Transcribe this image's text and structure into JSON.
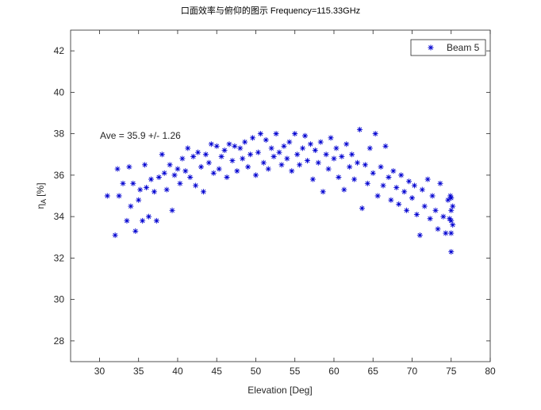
{
  "chart_data": {
    "type": "scatter",
    "title": "口面效率与俯仰的图示 Frequency=115.33GHz",
    "x_label": "Elevation [Deg]",
    "y_label": {
      "symbol": "η",
      "subscript": "A",
      "unit": "[%]"
    },
    "annotation": "Ave = 35.9 +/- 1.26",
    "legend": "top-right",
    "xlim": [
      26.3,
      80
    ],
    "ylim": [
      27,
      43
    ],
    "xticks": [
      30,
      35,
      40,
      45,
      50,
      55,
      60,
      65,
      70,
      75,
      80
    ],
    "yticks": [
      28,
      30,
      32,
      34,
      36,
      38,
      40,
      42
    ],
    "series": [
      {
        "name": "Beam 5",
        "color": "#0000d0",
        "marker": "*",
        "x": [
          31,
          32,
          32.3,
          32.5,
          33,
          33.5,
          33.8,
          34,
          34.3,
          34.6,
          35,
          35.2,
          35.5,
          35.8,
          36,
          36.3,
          36.6,
          37,
          37.3,
          37.6,
          38,
          38.3,
          38.6,
          39,
          39.3,
          39.6,
          40,
          40.3,
          40.6,
          41,
          41.3,
          41.6,
          42,
          42.3,
          42.6,
          43,
          43.3,
          43.6,
          44,
          44.3,
          44.6,
          45,
          45.3,
          45.6,
          46,
          46.3,
          46.6,
          47,
          47.3,
          47.6,
          48,
          48.3,
          48.6,
          49,
          49.3,
          49.6,
          50,
          50.3,
          50.6,
          51,
          51.3,
          51.6,
          52,
          52.3,
          52.6,
          53,
          53.3,
          53.6,
          54,
          54.3,
          54.6,
          55,
          55.3,
          55.6,
          56,
          56.3,
          56.6,
          57,
          57.3,
          57.6,
          58,
          58.3,
          58.6,
          59,
          59.3,
          59.6,
          60,
          60.3,
          60.6,
          61,
          61.3,
          61.6,
          62,
          62.3,
          62.6,
          63,
          63.3,
          63.6,
          64,
          64.3,
          64.6,
          65,
          65.3,
          65.6,
          66,
          66.3,
          66.6,
          67,
          67.3,
          67.6,
          68,
          68.3,
          68.6,
          69,
          69.3,
          69.6,
          70,
          70.3,
          70.6,
          71,
          71.3,
          71.6,
          72,
          72.3,
          72.6,
          73,
          73.3,
          73.6,
          74,
          74.3,
          74.6,
          75,
          75,
          75,
          75,
          75,
          75.2,
          75.2,
          74.8,
          74.9
        ],
        "values": [
          35.0,
          33.1,
          36.3,
          35.0,
          35.6,
          33.8,
          36.4,
          34.5,
          35.6,
          33.3,
          34.8,
          35.3,
          33.8,
          36.5,
          35.4,
          34.0,
          35.8,
          35.2,
          33.8,
          35.9,
          37.0,
          36.1,
          35.3,
          36.5,
          34.3,
          36.0,
          36.3,
          35.6,
          36.8,
          36.2,
          37.3,
          35.9,
          36.9,
          35.5,
          37.1,
          36.4,
          35.2,
          37.0,
          36.6,
          37.5,
          36.1,
          37.4,
          36.3,
          36.9,
          37.2,
          35.9,
          37.5,
          36.7,
          37.4,
          36.2,
          37.3,
          36.8,
          37.6,
          36.4,
          37.0,
          37.8,
          36.0,
          37.1,
          38.0,
          36.6,
          37.7,
          36.3,
          37.3,
          36.9,
          38.0,
          37.1,
          36.5,
          37.4,
          36.8,
          37.6,
          36.2,
          38.0,
          37.0,
          36.5,
          37.3,
          37.9,
          36.7,
          37.5,
          35.8,
          37.2,
          36.6,
          37.6,
          35.2,
          37.0,
          36.3,
          37.8,
          36.8,
          37.3,
          35.9,
          36.9,
          35.3,
          37.5,
          36.4,
          37.0,
          35.8,
          36.6,
          38.2,
          34.4,
          36.5,
          35.6,
          37.3,
          36.1,
          38.0,
          35.0,
          36.4,
          35.5,
          37.4,
          35.9,
          34.8,
          36.2,
          35.4,
          34.6,
          36.0,
          35.2,
          34.3,
          35.7,
          34.9,
          35.5,
          34.1,
          33.1,
          35.3,
          34.5,
          35.8,
          33.9,
          35.0,
          34.3,
          33.4,
          35.6,
          34.0,
          33.2,
          34.8,
          32.3,
          33.2,
          33.8,
          34.3,
          34.9,
          33.6,
          34.5,
          33.9,
          35.0
        ]
      }
    ]
  }
}
